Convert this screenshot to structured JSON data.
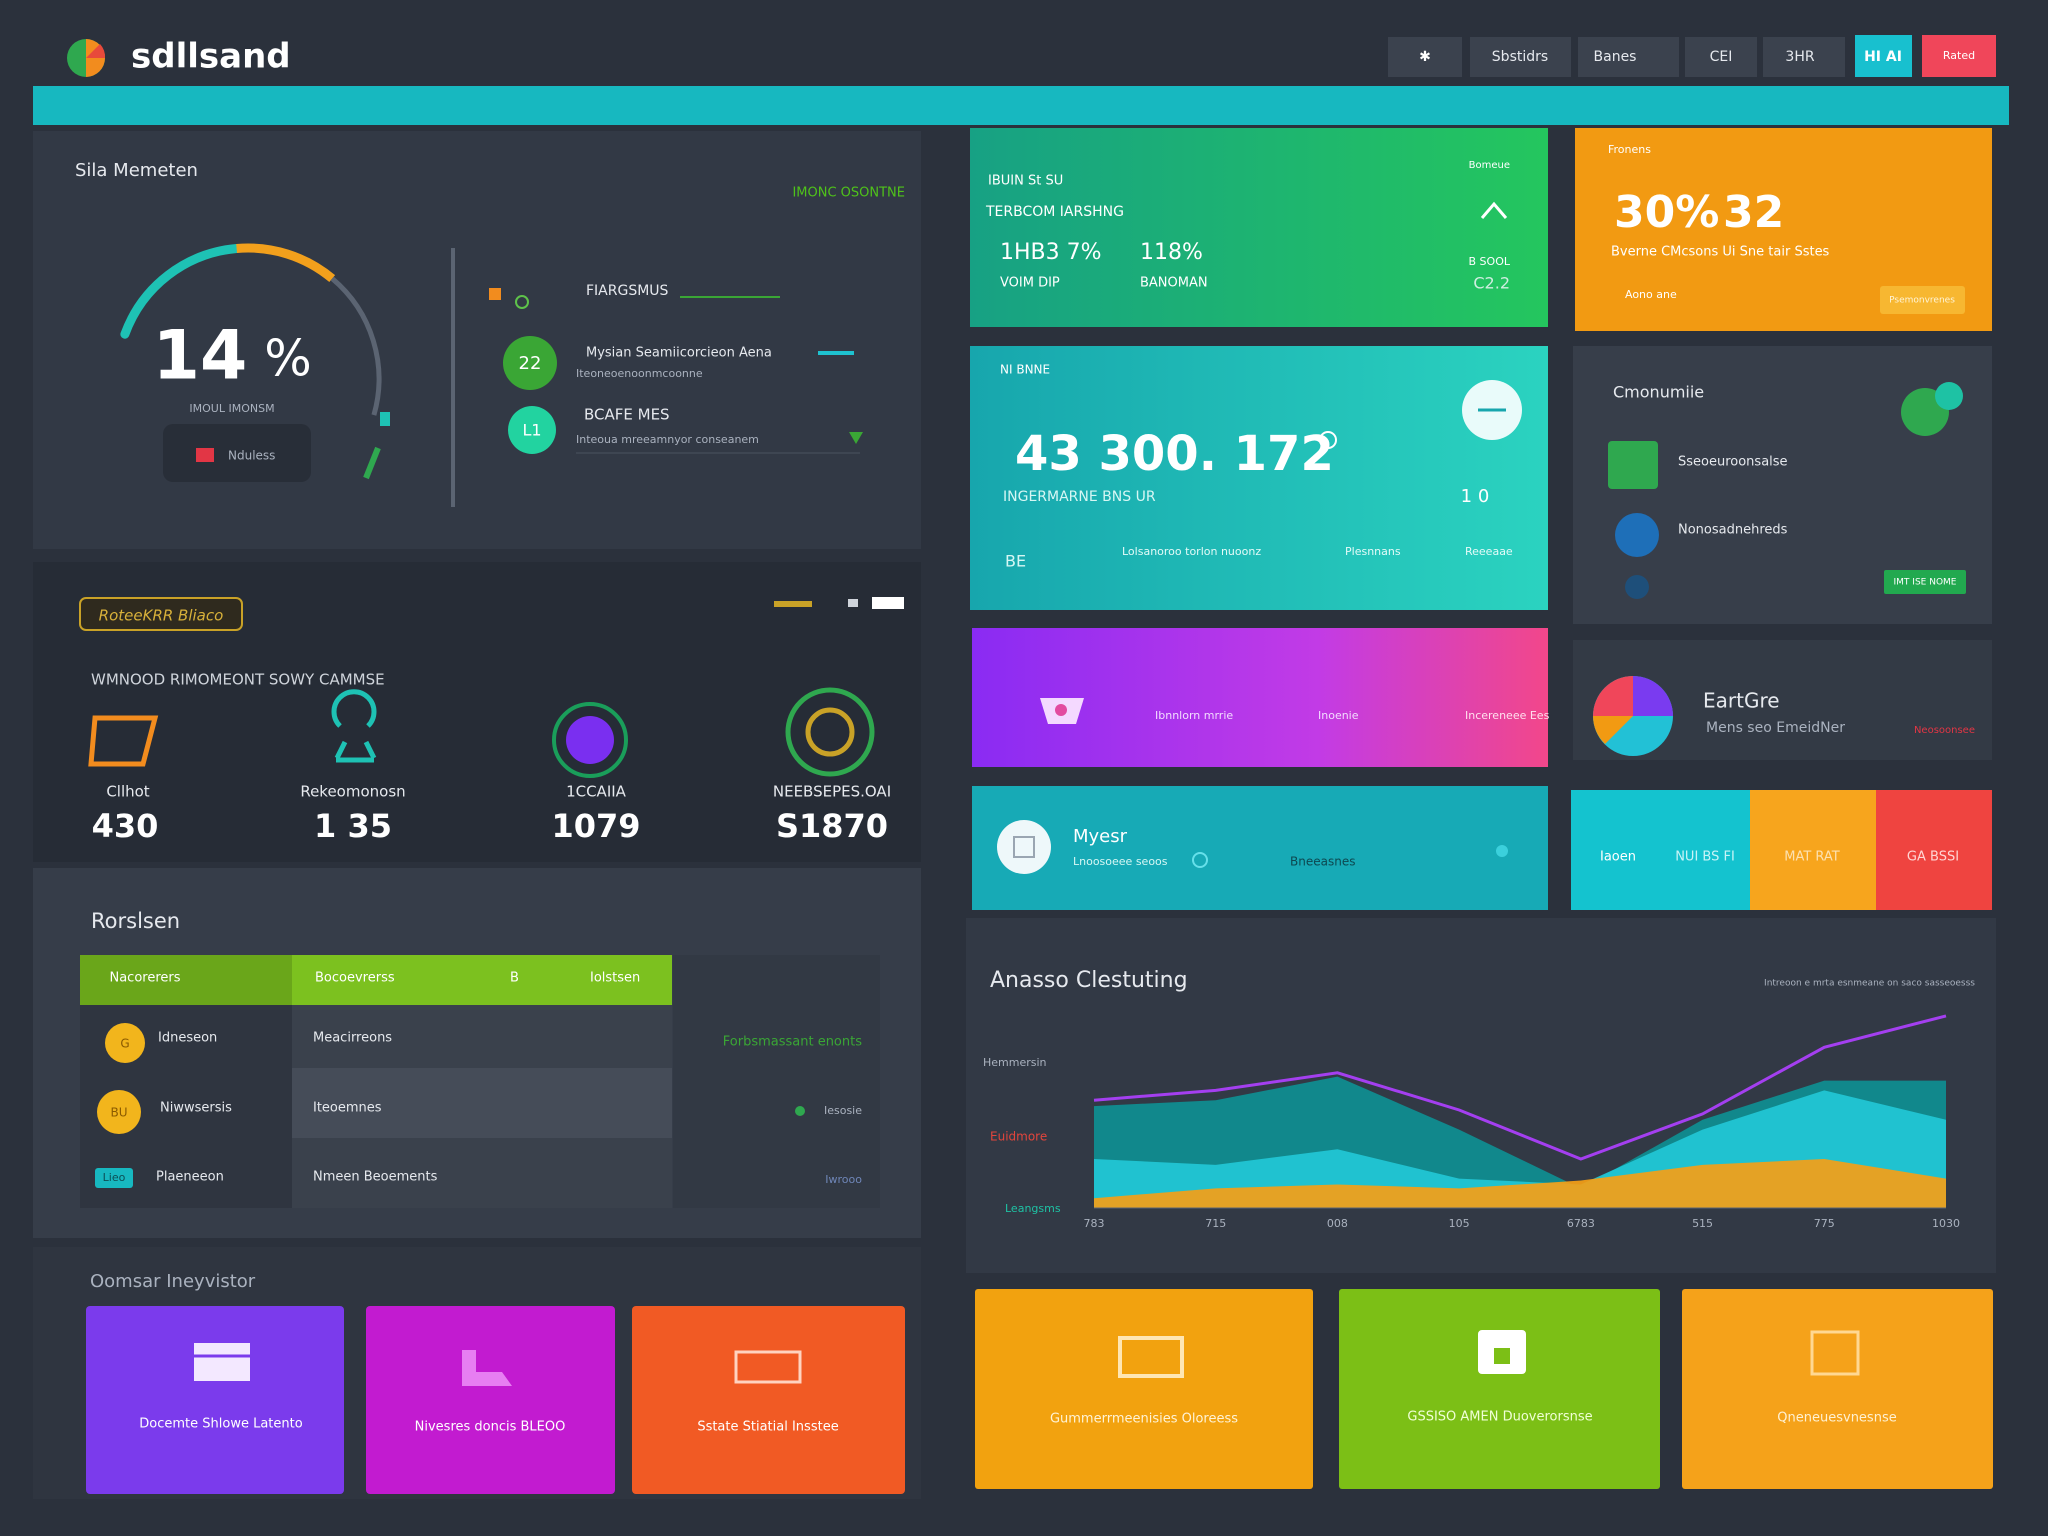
{
  "header": {
    "brand": "sdllsand",
    "nav": [
      "Sbstidrs",
      "Banes",
      "CEI",
      "3HR",
      "HI AI",
      "Rated"
    ]
  },
  "gauge_panel": {
    "title": "Sila Memeten",
    "tag": "IMONC OSONTNE",
    "value": "14",
    "unit": "%",
    "caption": "IMOUL IMONSM",
    "button": "Nduless",
    "items": [
      {
        "title": "FIARGSMUS"
      },
      {
        "badge": "22",
        "title": "Mysian Seamiicorcieon Aena",
        "subtitle": "Iteoneoenoonmcoonne"
      },
      {
        "badge": "L1",
        "title": "BCAFE MES",
        "subtitle": "Inteoua mreeamnyor conseanem"
      }
    ]
  },
  "stats_panel": {
    "badge": "RoteeKRR Bliaco",
    "subtitle": "WMNOOD RIMOMEONT SOWY CAMMSE",
    "stats": [
      {
        "label": "Cllhot",
        "value": "430"
      },
      {
        "label": "Rekeomonosn",
        "value": "1 35"
      },
      {
        "label": "1CCAIIA",
        "value": "1079"
      },
      {
        "label": "NEEBSEPES.OAI",
        "value": "S1870"
      }
    ]
  },
  "table_panel": {
    "title": "Rorslsen",
    "headers": [
      "Nacorerers",
      "Bocoevrerss",
      "B",
      "Iolstsen"
    ],
    "badges": [
      "G",
      "BU",
      "Lieo"
    ],
    "rows": [
      [
        "Idneseon",
        "Meacirreons"
      ],
      [
        "Niwwsersis",
        "Iteoemnes"
      ],
      [
        "Plaeneeon",
        "Nmeen Beoements"
      ]
    ],
    "notes": [
      "Forbsmassant enonts",
      "Iesosie",
      "Iwrooo"
    ]
  },
  "actions_panel": {
    "title": "Oomsar Ineyvistor",
    "cards": [
      "Docemte Shlowe Latento",
      "Nivesres doncis BLEOO",
      "Sstate Stiatial Insstee"
    ]
  },
  "green_card": {
    "label": "IBUIN  St SU",
    "title": "TERBCOM IARSHNG",
    "stats": [
      "1HB3 7%",
      "118%"
    ],
    "captions": [
      "VOIM DIP",
      "BANOMAN"
    ],
    "tag": "Bomeue",
    "side": "B SOOL",
    "side_value": "C2.2"
  },
  "orange_card": {
    "tag": "Fronens",
    "value1": "30%",
    "value2": "32",
    "caption": "Bverne CMcsons  Ui Sne tair Sstes",
    "foot": "Aono ane",
    "button": "Psemonvrenes"
  },
  "teal_card": {
    "label": "NI BNNE",
    "value": "43 300. 172",
    "caption": "INGERMARNE BNS UR",
    "side": "1 0",
    "icon": "BE",
    "foot": [
      "Lolsanoroo torlon nuoonz",
      "Plesnnans",
      "Reeeaae"
    ]
  },
  "contacts_card": {
    "title": "Cmonumiie",
    "items": [
      "Sseoeuroonsalse",
      "Nonosadnehreds"
    ],
    "button": "IMT ISE NOME"
  },
  "purple_card": {
    "items": [
      "Ibnnlorn mrrie",
      "Inoenie",
      "Incereneee Ees"
    ]
  },
  "pie_card": {
    "title": "EartGre",
    "subtitle": "Mens seo EmeidNer",
    "tag": "Neosoonsee"
  },
  "teal_bar": {
    "title": "Myesr",
    "subtitle": "Lnoosoeee seoos",
    "tag": "Bneeasnes"
  },
  "color_bar": [
    "Iaoen",
    "NUI BS FI",
    "MAT RAT",
    "GA BSSI"
  ],
  "chart_data": {
    "type": "area",
    "title": "Anasso Clestuting",
    "note": "Intreoon e mrta esnmeane on saco sasseoesss",
    "y_labels": [
      "Hemmersin",
      "Euidmore",
      "Leangsms"
    ],
    "categories": [
      "783",
      "715",
      "008",
      "105",
      "6783",
      "515",
      "775",
      "1030"
    ],
    "ylim": [
      0,
      100
    ],
    "series": [
      {
        "type": "area",
        "color": "#0e8f93",
        "values": [
          52,
          55,
          67,
          40,
          10,
          45,
          65,
          65
        ]
      },
      {
        "type": "area",
        "color": "#22c7d6",
        "values": [
          25,
          22,
          30,
          15,
          12,
          40,
          60,
          45
        ]
      },
      {
        "type": "area",
        "color": "#f5a016",
        "values": [
          5,
          10,
          12,
          10,
          14,
          22,
          25,
          15
        ]
      },
      {
        "type": "line",
        "color": "#a43ff0",
        "values": [
          55,
          60,
          69,
          50,
          25,
          48,
          82,
          98
        ]
      }
    ]
  },
  "feature_cards": [
    "Gummerrmeenisies Oloreess",
    "GSSISO AMEN Duoverorsnse",
    "Qneneuesvnesnse"
  ]
}
